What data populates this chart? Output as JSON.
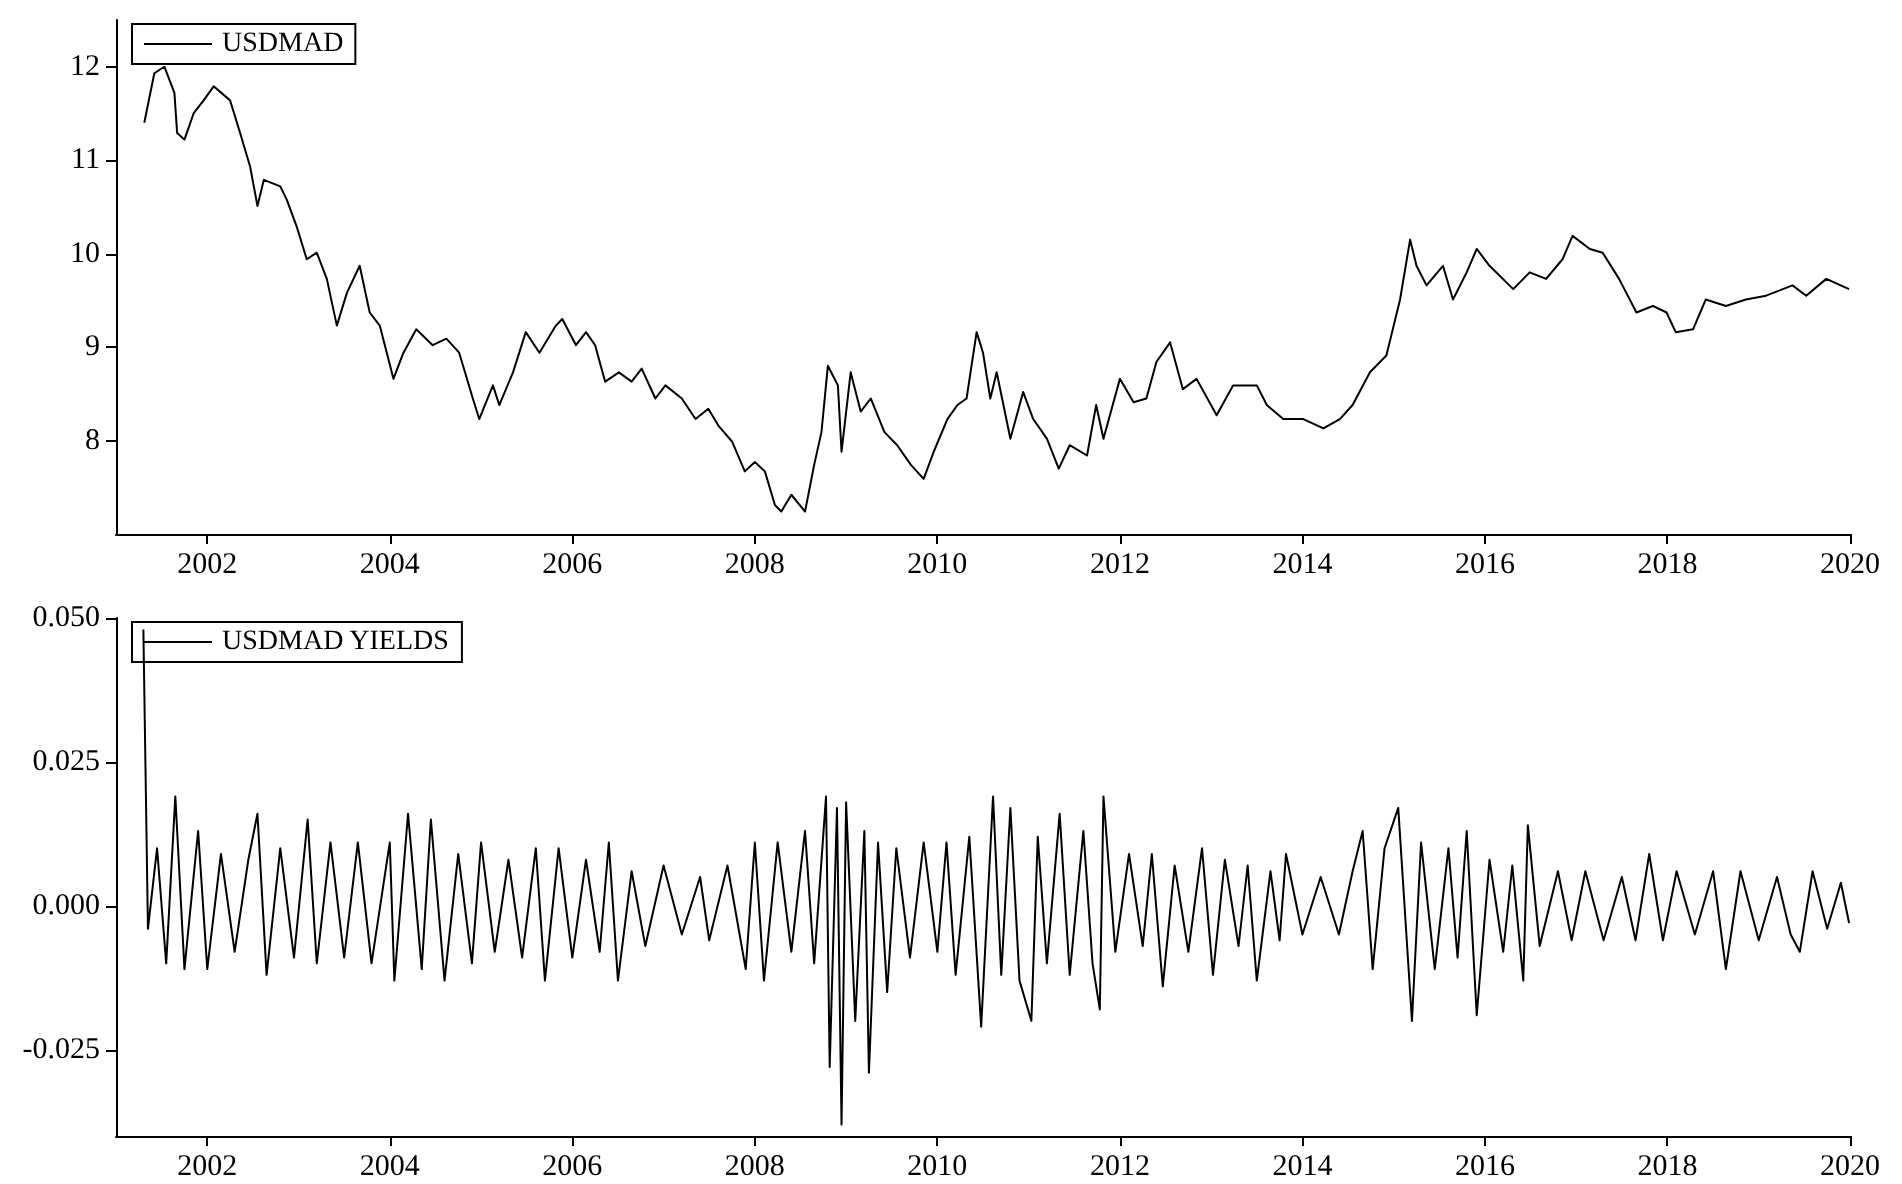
{
  "chart_data": [
    {
      "type": "line",
      "xlim": [
        2001,
        2020
      ],
      "xticks": [
        2002,
        2004,
        2006,
        2008,
        2010,
        2012,
        2014,
        2016,
        2018,
        2020
      ],
      "ylim": [
        7,
        12.5
      ],
      "yticks": [
        8,
        9,
        10,
        11,
        12
      ],
      "grid": false,
      "legend": "top left",
      "marker": "none",
      "line_style": "solid",
      "series": [
        {
          "name": "USDMAD",
          "color": "#000000",
          "x": [
            2001.31,
            2001.42,
            2001.53,
            2001.64,
            2001.67,
            2001.75,
            2001.85,
            2001.96,
            2002.07,
            2002.25,
            2002.36,
            2002.47,
            2002.55,
            2002.62,
            2002.8,
            2002.87,
            2002.98,
            2003.09,
            2003.2,
            2003.31,
            2003.42,
            2003.53,
            2003.67,
            2003.78,
            2003.89,
            2004.04,
            2004.15,
            2004.29,
            2004.47,
            2004.62,
            2004.76,
            2004.91,
            2004.98,
            2005.13,
            2005.2,
            2005.35,
            2005.49,
            2005.64,
            2005.82,
            2005.89,
            2006.04,
            2006.15,
            2006.25,
            2006.36,
            2006.51,
            2006.65,
            2006.76,
            2006.91,
            2007.02,
            2007.2,
            2007.35,
            2007.49,
            2007.6,
            2007.75,
            2007.89,
            2008.0,
            2008.11,
            2008.22,
            2008.29,
            2008.4,
            2008.55,
            2008.65,
            2008.73,
            2008.8,
            2008.91,
            2008.95,
            2009.05,
            2009.16,
            2009.27,
            2009.42,
            2009.56,
            2009.71,
            2009.85,
            2009.96,
            2010.11,
            2010.22,
            2010.32,
            2010.43,
            2010.5,
            2010.58,
            2010.65,
            2010.8,
            2010.94,
            2011.05,
            2011.2,
            2011.33,
            2011.45,
            2011.64,
            2011.74,
            2011.82,
            2012.0,
            2012.15,
            2012.29,
            2012.4,
            2012.55,
            2012.69,
            2012.84,
            2013.06,
            2013.24,
            2013.5,
            2013.61,
            2013.79,
            2014.01,
            2014.23,
            2014.41,
            2014.55,
            2014.74,
            2014.92,
            2015.07,
            2015.18,
            2015.25,
            2015.36,
            2015.54,
            2015.65,
            2015.8,
            2015.91,
            2016.05,
            2016.31,
            2016.49,
            2016.67,
            2016.85,
            2016.96,
            2017.15,
            2017.29,
            2017.47,
            2017.66,
            2017.84,
            2017.99,
            2018.09,
            2018.28,
            2018.42,
            2018.64,
            2018.86,
            2019.08,
            2019.37,
            2019.52,
            2019.74,
            2019.99
          ],
          "values": [
            11.4,
            11.93,
            12.0,
            11.72,
            11.29,
            11.22,
            11.5,
            11.64,
            11.79,
            11.64,
            11.29,
            10.93,
            10.51,
            10.79,
            10.72,
            10.58,
            10.29,
            9.94,
            10.01,
            9.73,
            9.23,
            9.58,
            9.87,
            9.37,
            9.23,
            8.66,
            8.94,
            9.19,
            9.02,
            9.09,
            8.94,
            8.45,
            8.23,
            8.59,
            8.38,
            8.73,
            9.16,
            8.94,
            9.23,
            9.3,
            9.02,
            9.16,
            9.02,
            8.63,
            8.73,
            8.63,
            8.77,
            8.45,
            8.59,
            8.45,
            8.23,
            8.34,
            8.16,
            7.99,
            7.67,
            7.77,
            7.67,
            7.31,
            7.24,
            7.42,
            7.24,
            7.74,
            8.09,
            8.8,
            8.59,
            7.88,
            8.73,
            8.31,
            8.45,
            8.09,
            7.95,
            7.74,
            7.59,
            7.88,
            8.23,
            8.38,
            8.45,
            9.16,
            8.94,
            8.45,
            8.73,
            8.02,
            8.52,
            8.23,
            8.02,
            7.7,
            7.95,
            7.84,
            8.38,
            8.02,
            8.66,
            8.41,
            8.45,
            8.84,
            9.05,
            8.55,
            8.66,
            8.27,
            8.59,
            8.59,
            8.38,
            8.23,
            8.23,
            8.13,
            8.23,
            8.38,
            8.73,
            8.91,
            9.51,
            10.15,
            9.87,
            9.66,
            9.87,
            9.51,
            9.8,
            10.05,
            9.87,
            9.62,
            9.8,
            9.73,
            9.94,
            10.19,
            10.05,
            10.01,
            9.73,
            9.37,
            9.44,
            9.37,
            9.16,
            9.19,
            9.51,
            9.44,
            9.51,
            9.55,
            9.66,
            9.55,
            9.73,
            9.62
          ]
        }
      ]
    },
    {
      "type": "line",
      "xlim": [
        2001,
        2020
      ],
      "xticks": [
        2002,
        2004,
        2006,
        2008,
        2010,
        2012,
        2014,
        2016,
        2018,
        2020
      ],
      "ylim": [
        -0.04,
        0.05
      ],
      "yticks": [
        {
          "value": -0.025,
          "label": "-0.025"
        },
        {
          "value": 0,
          "label": "0.000"
        },
        {
          "value": 0.025,
          "label": "0.025"
        },
        {
          "value": 0.05,
          "label": "0.050"
        }
      ],
      "grid": false,
      "legend": "top left",
      "marker": "none",
      "line_style": "solid",
      "series": [
        {
          "name": "USDMAD YIELDS",
          "color": "#000000",
          "x": [
            2001.3,
            2001.35,
            2001.45,
            2001.55,
            2001.65,
            2001.75,
            2001.9,
            2002.0,
            2002.15,
            2002.3,
            2002.45,
            2002.55,
            2002.65,
            2002.8,
            2002.95,
            2003.1,
            2003.2,
            2003.35,
            2003.5,
            2003.65,
            2003.8,
            2004.0,
            2004.05,
            2004.2,
            2004.35,
            2004.45,
            2004.6,
            2004.75,
            2004.9,
            2005.0,
            2005.15,
            2005.3,
            2005.45,
            2005.6,
            2005.7,
            2005.85,
            2006.0,
            2006.15,
            2006.3,
            2006.4,
            2006.5,
            2006.65,
            2006.8,
            2007.0,
            2007.2,
            2007.4,
            2007.5,
            2007.7,
            2007.9,
            2008.0,
            2008.1,
            2008.25,
            2008.4,
            2008.55,
            2008.65,
            2008.78,
            2008.82,
            2008.9,
            2008.95,
            2009.0,
            2009.1,
            2009.2,
            2009.25,
            2009.35,
            2009.45,
            2009.55,
            2009.7,
            2009.85,
            2010.0,
            2010.1,
            2010.2,
            2010.35,
            2010.48,
            2010.61,
            2010.7,
            2010.8,
            2010.9,
            2011.03,
            2011.1,
            2011.2,
            2011.34,
            2011.45,
            2011.6,
            2011.7,
            2011.78,
            2011.82,
            2011.95,
            2012.1,
            2012.25,
            2012.35,
            2012.47,
            2012.6,
            2012.75,
            2012.9,
            2013.02,
            2013.15,
            2013.3,
            2013.4,
            2013.5,
            2013.65,
            2013.75,
            2013.82,
            2014.0,
            2014.2,
            2014.4,
            2014.55,
            2014.66,
            2014.77,
            2014.9,
            2015.05,
            2015.2,
            2015.3,
            2015.45,
            2015.6,
            2015.7,
            2015.8,
            2015.91,
            2016.05,
            2016.2,
            2016.3,
            2016.42,
            2016.47,
            2016.6,
            2016.8,
            2016.95,
            2017.1,
            2017.3,
            2017.5,
            2017.65,
            2017.8,
            2017.95,
            2018.1,
            2018.3,
            2018.5,
            2018.64,
            2018.8,
            2019.0,
            2019.2,
            2019.35,
            2019.45,
            2019.59,
            2019.75,
            2019.9,
            2019.99
          ],
          "values": [
            0.048,
            -0.004,
            0.01,
            -0.01,
            0.019,
            -0.011,
            0.013,
            -0.011,
            0.009,
            -0.008,
            0.008,
            0.016,
            -0.012,
            0.01,
            -0.009,
            0.015,
            -0.01,
            0.011,
            -0.009,
            0.011,
            -0.01,
            0.011,
            -0.013,
            0.016,
            -0.011,
            0.015,
            -0.013,
            0.009,
            -0.01,
            0.011,
            -0.008,
            0.008,
            -0.009,
            0.01,
            -0.013,
            0.01,
            -0.009,
            0.008,
            -0.008,
            0.011,
            -0.013,
            0.006,
            -0.007,
            0.007,
            -0.005,
            0.005,
            -0.006,
            0.007,
            -0.011,
            0.011,
            -0.013,
            0.011,
            -0.008,
            0.013,
            -0.01,
            0.019,
            -0.028,
            0.017,
            -0.038,
            0.018,
            -0.02,
            0.013,
            -0.029,
            0.011,
            -0.015,
            0.01,
            -0.009,
            0.011,
            -0.008,
            0.011,
            -0.012,
            0.012,
            -0.021,
            0.019,
            -0.012,
            0.017,
            -0.013,
            -0.02,
            0.012,
            -0.01,
            0.016,
            -0.012,
            0.013,
            -0.01,
            -0.018,
            0.019,
            -0.008,
            0.009,
            -0.007,
            0.009,
            -0.014,
            0.007,
            -0.008,
            0.01,
            -0.012,
            0.008,
            -0.007,
            0.007,
            -0.013,
            0.006,
            -0.006,
            0.009,
            -0.005,
            0.005,
            -0.005,
            0.006,
            0.013,
            -0.011,
            0.01,
            0.017,
            -0.02,
            0.011,
            -0.011,
            0.01,
            -0.009,
            0.013,
            -0.019,
            0.008,
            -0.008,
            0.007,
            -0.013,
            0.014,
            -0.007,
            0.006,
            -0.006,
            0.006,
            -0.006,
            0.005,
            -0.006,
            0.009,
            -0.006,
            0.006,
            -0.005,
            0.006,
            -0.011,
            0.006,
            -0.006,
            0.005,
            -0.005,
            -0.008,
            0.006,
            -0.004,
            0.004,
            -0.003
          ]
        }
      ]
    }
  ]
}
